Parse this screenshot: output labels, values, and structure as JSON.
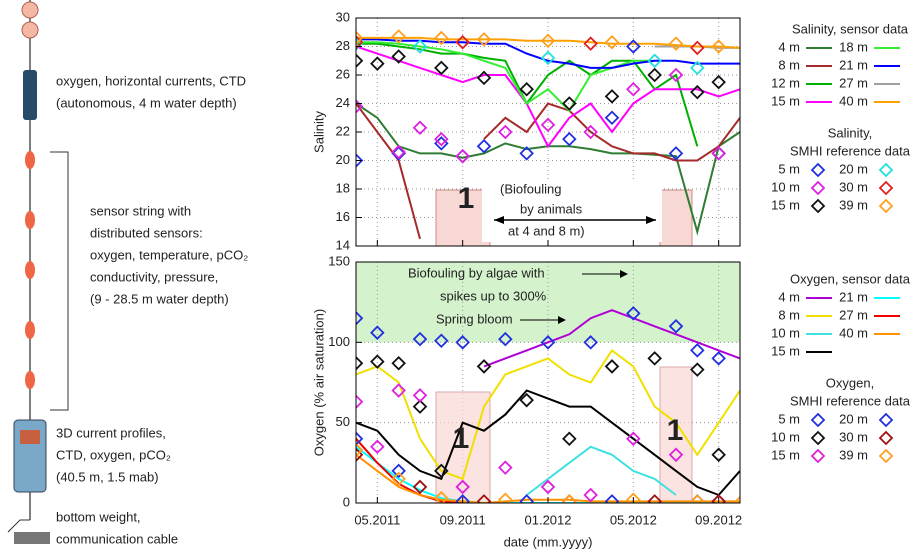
{
  "diagram": {
    "labels": [
      "oxygen, horizontal currents, CTD",
      "(autonomous, 4 m water depth)",
      "sensor string with",
      "distributed sensors:",
      "oxygen, temperature, pCO₂",
      "conductivity, pressure,",
      "(9 - 28.5 m water depth)",
      "3D current profiles,",
      "CTD, oxygen, pCO₂",
      "(40.5 m, 1.5 mab)",
      "bottom weight,",
      "communication cable"
    ]
  },
  "chart_data": [
    {
      "type": "line",
      "ylabel": "Salinity",
      "ylim": [
        14,
        30
      ],
      "yticks": [
        14,
        16,
        18,
        20,
        22,
        24,
        26,
        28,
        30
      ],
      "xlim": [
        "2011-04",
        "2012-10"
      ],
      "xticks": [
        {
          "value": "2011-05",
          "label": "05.2011"
        },
        {
          "value": "2011-09",
          "label": "09.2011"
        },
        {
          "value": "2012-01",
          "label": "01.2012"
        },
        {
          "value": "2012-05",
          "label": "05.2012"
        },
        {
          "value": "2012-09",
          "label": "09.2012"
        }
      ],
      "grid": true,
      "annotations": [
        "1",
        "(Biofouling",
        "by animals",
        "at 4 and 8 m)"
      ],
      "legend_title": "Salinity, sensor data",
      "reference_legend_title": [
        "Salinity,",
        "SMHI reference data"
      ],
      "x": [
        "2011-04",
        "2011-05",
        "2011-06",
        "2011-07",
        "2011-08",
        "2011-09",
        "2011-10",
        "2011-11",
        "2011-12",
        "2012-01",
        "2012-02",
        "2012-03",
        "2012-04",
        "2012-05",
        "2012-06",
        "2012-07",
        "2012-08",
        "2012-09",
        "2012-10"
      ],
      "series": [
        {
          "name": "4 m",
          "color": "#2e7d32",
          "values": [
            24,
            23,
            21,
            20.5,
            20.5,
            20.2,
            20.5,
            21.2,
            20.8,
            21,
            21,
            20.8,
            20.5,
            20.5,
            20.4,
            20.3,
            15,
            21,
            22
          ]
        },
        {
          "name": "8 m",
          "color": "#a52a2a",
          "values": [
            24,
            22,
            20,
            14.5,
            null,
            null,
            21.5,
            23,
            22,
            24,
            23.5,
            22,
            21,
            20.5,
            20.5,
            20,
            20,
            21,
            23
          ]
        },
        {
          "name": "12 m",
          "color": "#00b000",
          "values": [
            28.2,
            28.2,
            28,
            27.8,
            27.5,
            27.5,
            27.2,
            27,
            24,
            26,
            27,
            26,
            27,
            27,
            25,
            26,
            21,
            null,
            null
          ]
        },
        {
          "name": "15 m",
          "color": "#ff00ff",
          "values": [
            28,
            27.5,
            27,
            26.5,
            26,
            25.5,
            26,
            26,
            24,
            21,
            23,
            24,
            22,
            24,
            25,
            25,
            25,
            24.5,
            25
          ]
        },
        {
          "name": "18 m",
          "color": "#33ee33",
          "values": [
            28.3,
            28.3,
            28.2,
            28,
            27.8,
            27.5,
            27,
            26.5,
            24,
            25,
            23.5,
            26,
            26.5,
            27,
            27,
            null,
            null,
            null,
            null
          ]
        },
        {
          "name": "21 m",
          "color": "#0000ff",
          "values": [
            28.5,
            28.5,
            28.4,
            28.4,
            28.3,
            28.3,
            28.2,
            28.2,
            27.5,
            27,
            26.8,
            26.5,
            26.5,
            26.8,
            27,
            27,
            26.8,
            26.8,
            26.8
          ]
        },
        {
          "name": "27 m",
          "color": "#a0a0a0",
          "values": [
            null,
            null,
            null,
            null,
            null,
            null,
            null,
            null,
            null,
            null,
            null,
            null,
            null,
            null,
            28,
            28,
            28,
            27.9,
            27.9
          ]
        },
        {
          "name": "40 m",
          "color": "#ffa000",
          "values": [
            28.6,
            28.6,
            28.6,
            28.6,
            28.5,
            28.5,
            28.5,
            28.5,
            28.4,
            28.4,
            28.4,
            28.3,
            28.2,
            28.2,
            28.2,
            28.1,
            28,
            28,
            27.9
          ]
        }
      ],
      "reference_series": [
        {
          "name": "5 m",
          "color": "#2030e0",
          "x": [
            "2011-04",
            "2011-06",
            "2011-08",
            "2011-09",
            "2011-10",
            "2011-12",
            "2012-02",
            "2012-04",
            "2012-05",
            "2012-07",
            "2012-09"
          ],
          "values": [
            20,
            20.5,
            21.2,
            20.3,
            21,
            20.5,
            21.5,
            23,
            28,
            20.5,
            20.5
          ]
        },
        {
          "name": "10 m",
          "color": "#e020e0",
          "x": [
            "2011-04",
            "2011-06",
            "2011-07",
            "2011-08",
            "2011-09",
            "2011-11",
            "2012-01",
            "2012-03",
            "2012-05",
            "2012-07",
            "2012-09"
          ],
          "values": [
            23.8,
            20.6,
            22.3,
            21.5,
            20.3,
            22,
            22.5,
            22,
            25,
            26,
            20.5
          ]
        },
        {
          "name": "15 m",
          "color": "#111111",
          "x": [
            "2011-04",
            "2011-05",
            "2011-06",
            "2011-08",
            "2011-10",
            "2011-12",
            "2012-02",
            "2012-04",
            "2012-06",
            "2012-08",
            "2012-09"
          ],
          "values": [
            27,
            26.8,
            27.3,
            26.5,
            25.8,
            25,
            24,
            24.5,
            26,
            24.8,
            25.5
          ]
        },
        {
          "name": "20 m",
          "color": "#20e0e0",
          "x": [
            "2011-04",
            "2011-07",
            "2012-01",
            "2012-06",
            "2012-08"
          ],
          "values": [
            28.2,
            28,
            27.2,
            27,
            26.5
          ]
        },
        {
          "name": "30 m",
          "color": "#e02020",
          "x": [
            "2011-04",
            "2011-09",
            "2012-03",
            "2012-08"
          ],
          "values": [
            28.3,
            28.3,
            28.2,
            27.9
          ]
        },
        {
          "name": "39 m",
          "color": "#ffa020",
          "x": [
            "2011-04",
            "2011-06",
            "2011-08",
            "2011-10",
            "2012-01",
            "2012-04",
            "2012-07",
            "2012-09"
          ],
          "values": [
            28.6,
            28.7,
            28.6,
            28.5,
            28.4,
            28.3,
            28.2,
            28
          ]
        }
      ]
    },
    {
      "type": "line",
      "ylabel": "Oxygen (% air saturation)",
      "xlabel": "date (mm.yyyy)",
      "ylim": [
        0,
        150
      ],
      "yticks": [
        0,
        50,
        100,
        150
      ],
      "xlim": [
        "2011-04",
        "2012-10"
      ],
      "xticks": [
        {
          "value": "2011-05",
          "label": "05.2011"
        },
        {
          "value": "2011-09",
          "label": "09.2011"
        },
        {
          "value": "2012-01",
          "label": "01.2012"
        },
        {
          "value": "2012-05",
          "label": "05.2012"
        },
        {
          "value": "2012-09",
          "label": "09.2012"
        }
      ],
      "grid": true,
      "band": {
        "from": 100,
        "to": 150,
        "color": "#d4f2cc"
      },
      "annotations": [
        "Biofouling by algae with",
        "spikes up to 300%",
        "Spring bloom",
        "1",
        "1"
      ],
      "legend_title": "Oxygen, sensor data",
      "reference_legend_title": [
        "Oxygen,",
        "SMHI reference data"
      ],
      "x": [
        "2011-04",
        "2011-05",
        "2011-06",
        "2011-07",
        "2011-08",
        "2011-09",
        "2011-10",
        "2011-11",
        "2011-12",
        "2012-01",
        "2012-02",
        "2012-03",
        "2012-04",
        "2012-05",
        "2012-06",
        "2012-07",
        "2012-08",
        "2012-09",
        "2012-10"
      ],
      "series": [
        {
          "name": "4 m",
          "color": "#b000d8",
          "values": [
            null,
            null,
            null,
            null,
            null,
            null,
            85,
            90,
            95,
            100,
            105,
            115,
            120,
            115,
            110,
            105,
            100,
            95,
            90
          ]
        },
        {
          "name": "8 m",
          "color": "#f0e000",
          "values": [
            80,
            85,
            75,
            40,
            20,
            15,
            60,
            80,
            85,
            90,
            80,
            75,
            95,
            85,
            60,
            50,
            30,
            50,
            70
          ]
        },
        {
          "name": "10 m",
          "color": "#40e0e0",
          "values": [
            null,
            null,
            null,
            null,
            null,
            null,
            null,
            null,
            5,
            15,
            25,
            35,
            30,
            20,
            15,
            5,
            null,
            null,
            null
          ]
        },
        {
          "name": "15 m",
          "color": "#000000",
          "values": [
            50,
            45,
            30,
            20,
            15,
            50,
            45,
            55,
            70,
            65,
            60,
            60,
            50,
            40,
            30,
            20,
            10,
            5,
            20
          ]
        },
        {
          "name": "21 m",
          "color": "#00ffff",
          "values": [
            35,
            25,
            15,
            8,
            3,
            1,
            0,
            0,
            0,
            0,
            0,
            0,
            0,
            0,
            0,
            0,
            0,
            0,
            null
          ]
        },
        {
          "name": "27 m",
          "color": "#ee0000",
          "values": [
            40,
            25,
            12,
            5,
            1,
            0,
            0,
            null,
            null,
            null,
            null,
            null,
            null,
            null,
            null,
            null,
            null,
            null,
            null
          ]
        },
        {
          "name": "40 m",
          "color": "#ff9000",
          "values": [
            30,
            20,
            10,
            5,
            2,
            1,
            0,
            1,
            2,
            2,
            2,
            1,
            1,
            1,
            1,
            1,
            1,
            1,
            1
          ]
        }
      ],
      "reference_series": [
        {
          "name": "5 m",
          "color": "#2030e0",
          "x": [
            "2011-04",
            "2011-05",
            "2011-07",
            "2011-08",
            "2011-09",
            "2011-11",
            "2012-01",
            "2012-03",
            "2012-05",
            "2012-07",
            "2012-08",
            "2012-09"
          ],
          "values": [
            115,
            106,
            102,
            101,
            100,
            102,
            100,
            100,
            118,
            110,
            95,
            90
          ]
        },
        {
          "name": "10 m",
          "color": "#111111",
          "x": [
            "2011-04",
            "2011-05",
            "2011-06",
            "2011-07",
            "2011-08",
            "2011-10",
            "2011-12",
            "2012-02",
            "2012-04",
            "2012-06",
            "2012-08",
            "2012-09"
          ],
          "values": [
            87,
            88,
            87,
            60,
            20,
            85,
            64,
            40,
            85,
            90,
            83,
            30
          ]
        },
        {
          "name": "15 m",
          "color": "#e020e0",
          "x": [
            "2011-04",
            "2011-05",
            "2011-06",
            "2011-07",
            "2011-09",
            "2011-11",
            "2012-01",
            "2012-03",
            "2012-05",
            "2012-07",
            "2012-09"
          ],
          "values": [
            63,
            35,
            70,
            67,
            10,
            22,
            10,
            5,
            40,
            30,
            1
          ]
        },
        {
          "name": "20 m",
          "color": "#2030e0",
          "x": [
            "2011-04",
            "2011-06",
            "2011-09",
            "2011-12",
            "2012-04",
            "2012-08"
          ],
          "values": [
            40,
            20,
            1,
            1,
            1,
            1
          ]
        },
        {
          "name": "30 m",
          "color": "#a01010",
          "x": [
            "2011-04",
            "2011-07",
            "2011-10",
            "2012-02",
            "2012-06",
            "2012-09"
          ],
          "values": [
            30,
            10,
            1,
            1,
            1,
            1
          ]
        },
        {
          "name": "39 m",
          "color": "#ffa020",
          "x": [
            "2011-04",
            "2011-06",
            "2011-08",
            "2011-11",
            "2012-02",
            "2012-05",
            "2012-08",
            "2012-10"
          ],
          "values": [
            33,
            15,
            3,
            2,
            1,
            2,
            1,
            0
          ]
        }
      ]
    }
  ]
}
